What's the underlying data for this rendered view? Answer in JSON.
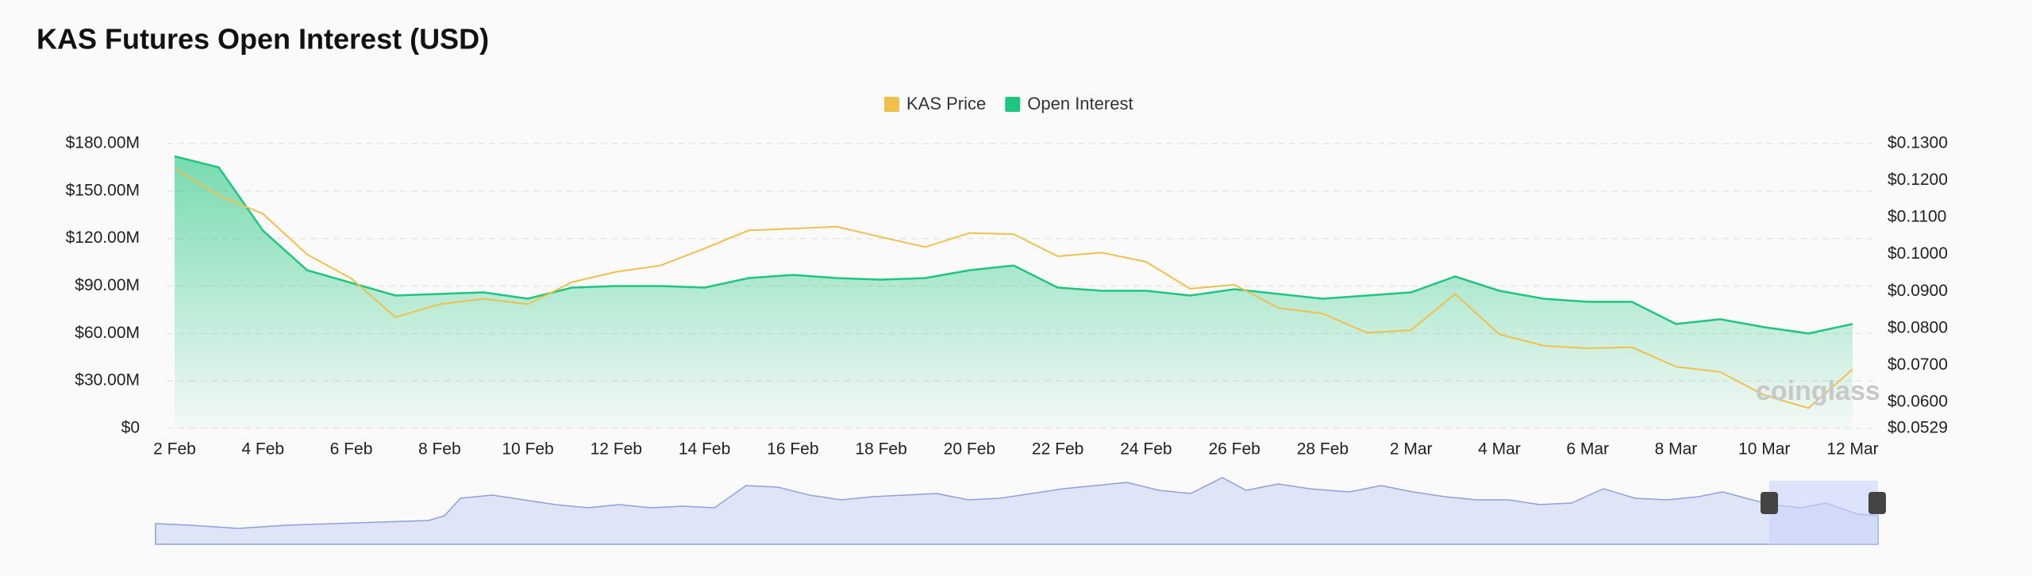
{
  "chart_data": {
    "type": "line",
    "title": "KAS Futures Open Interest (USD)",
    "watermark": "coinglass",
    "categories": [
      "2 Feb",
      null,
      "4 Feb",
      null,
      "6 Feb",
      null,
      "8 Feb",
      null,
      "10 Feb",
      null,
      "12 Feb",
      null,
      "14 Feb",
      null,
      "16 Feb",
      null,
      "18 Feb",
      null,
      "20 Feb",
      null,
      "22 Feb",
      null,
      "24 Feb",
      null,
      "26 Feb",
      null,
      "28 Feb",
      null,
      "2 Mar",
      null,
      "4 Mar",
      null,
      "6 Mar",
      null,
      "8 Mar",
      null,
      "10 Mar",
      null,
      "12 Mar"
    ],
    "series": [
      {
        "name": "KAS Price",
        "color": "#f0c04a",
        "axis": "y2",
        "values": [
          0.1233,
          0.116,
          0.111,
          0.1,
          0.0935,
          0.083,
          0.0865,
          0.088,
          0.0865,
          0.0925,
          0.0953,
          0.097,
          0.1016,
          0.1065,
          0.107,
          0.1075,
          0.1047,
          0.102,
          0.1058,
          0.1055,
          0.0995,
          0.1005,
          0.098,
          0.0907,
          0.0918,
          0.0855,
          0.084,
          0.0788,
          0.0795,
          0.0893,
          0.0784,
          0.0753,
          0.0746,
          0.0749,
          0.0696,
          0.0682,
          0.0619,
          0.0584,
          0.0689
        ]
      },
      {
        "name": "Open Interest",
        "color": "#1fc67f",
        "area": true,
        "values": [
          172,
          165,
          125,
          100,
          92,
          84,
          85,
          86,
          82,
          89,
          90,
          90,
          89,
          95,
          97,
          95,
          94,
          95,
          100,
          103,
          89,
          87,
          87,
          84,
          88,
          85,
          82,
          84,
          86,
          96,
          87,
          82,
          80,
          80,
          66,
          69,
          64,
          60,
          66
        ]
      }
    ],
    "ylim": [
      0,
      180
    ],
    "yticks": [
      {
        "value": 0,
        "label": "$0"
      },
      {
        "value": 30,
        "label": "$30.00M"
      },
      {
        "value": 60,
        "label": "$60.00M"
      },
      {
        "value": 90,
        "label": "$90.00M"
      },
      {
        "value": 120,
        "label": "$120.00M"
      },
      {
        "value": 150,
        "label": "$150.00M"
      },
      {
        "value": 180,
        "label": "$180.00M"
      }
    ],
    "y2lim": [
      0.0529,
      0.13
    ],
    "y2ticks": [
      {
        "value": 0.0529,
        "label": "$0.0529"
      },
      {
        "value": 0.06,
        "label": "$0.0600"
      },
      {
        "value": 0.07,
        "label": "$0.0700"
      },
      {
        "value": 0.08,
        "label": "$0.0800"
      },
      {
        "value": 0.09,
        "label": "$0.0900"
      },
      {
        "value": 0.1,
        "label": "$0.1000"
      },
      {
        "value": 0.11,
        "label": "$0.1100"
      },
      {
        "value": 0.12,
        "label": "$0.1200"
      },
      {
        "value": 0.13,
        "label": "$0.1300"
      }
    ],
    "grid": true
  }
}
